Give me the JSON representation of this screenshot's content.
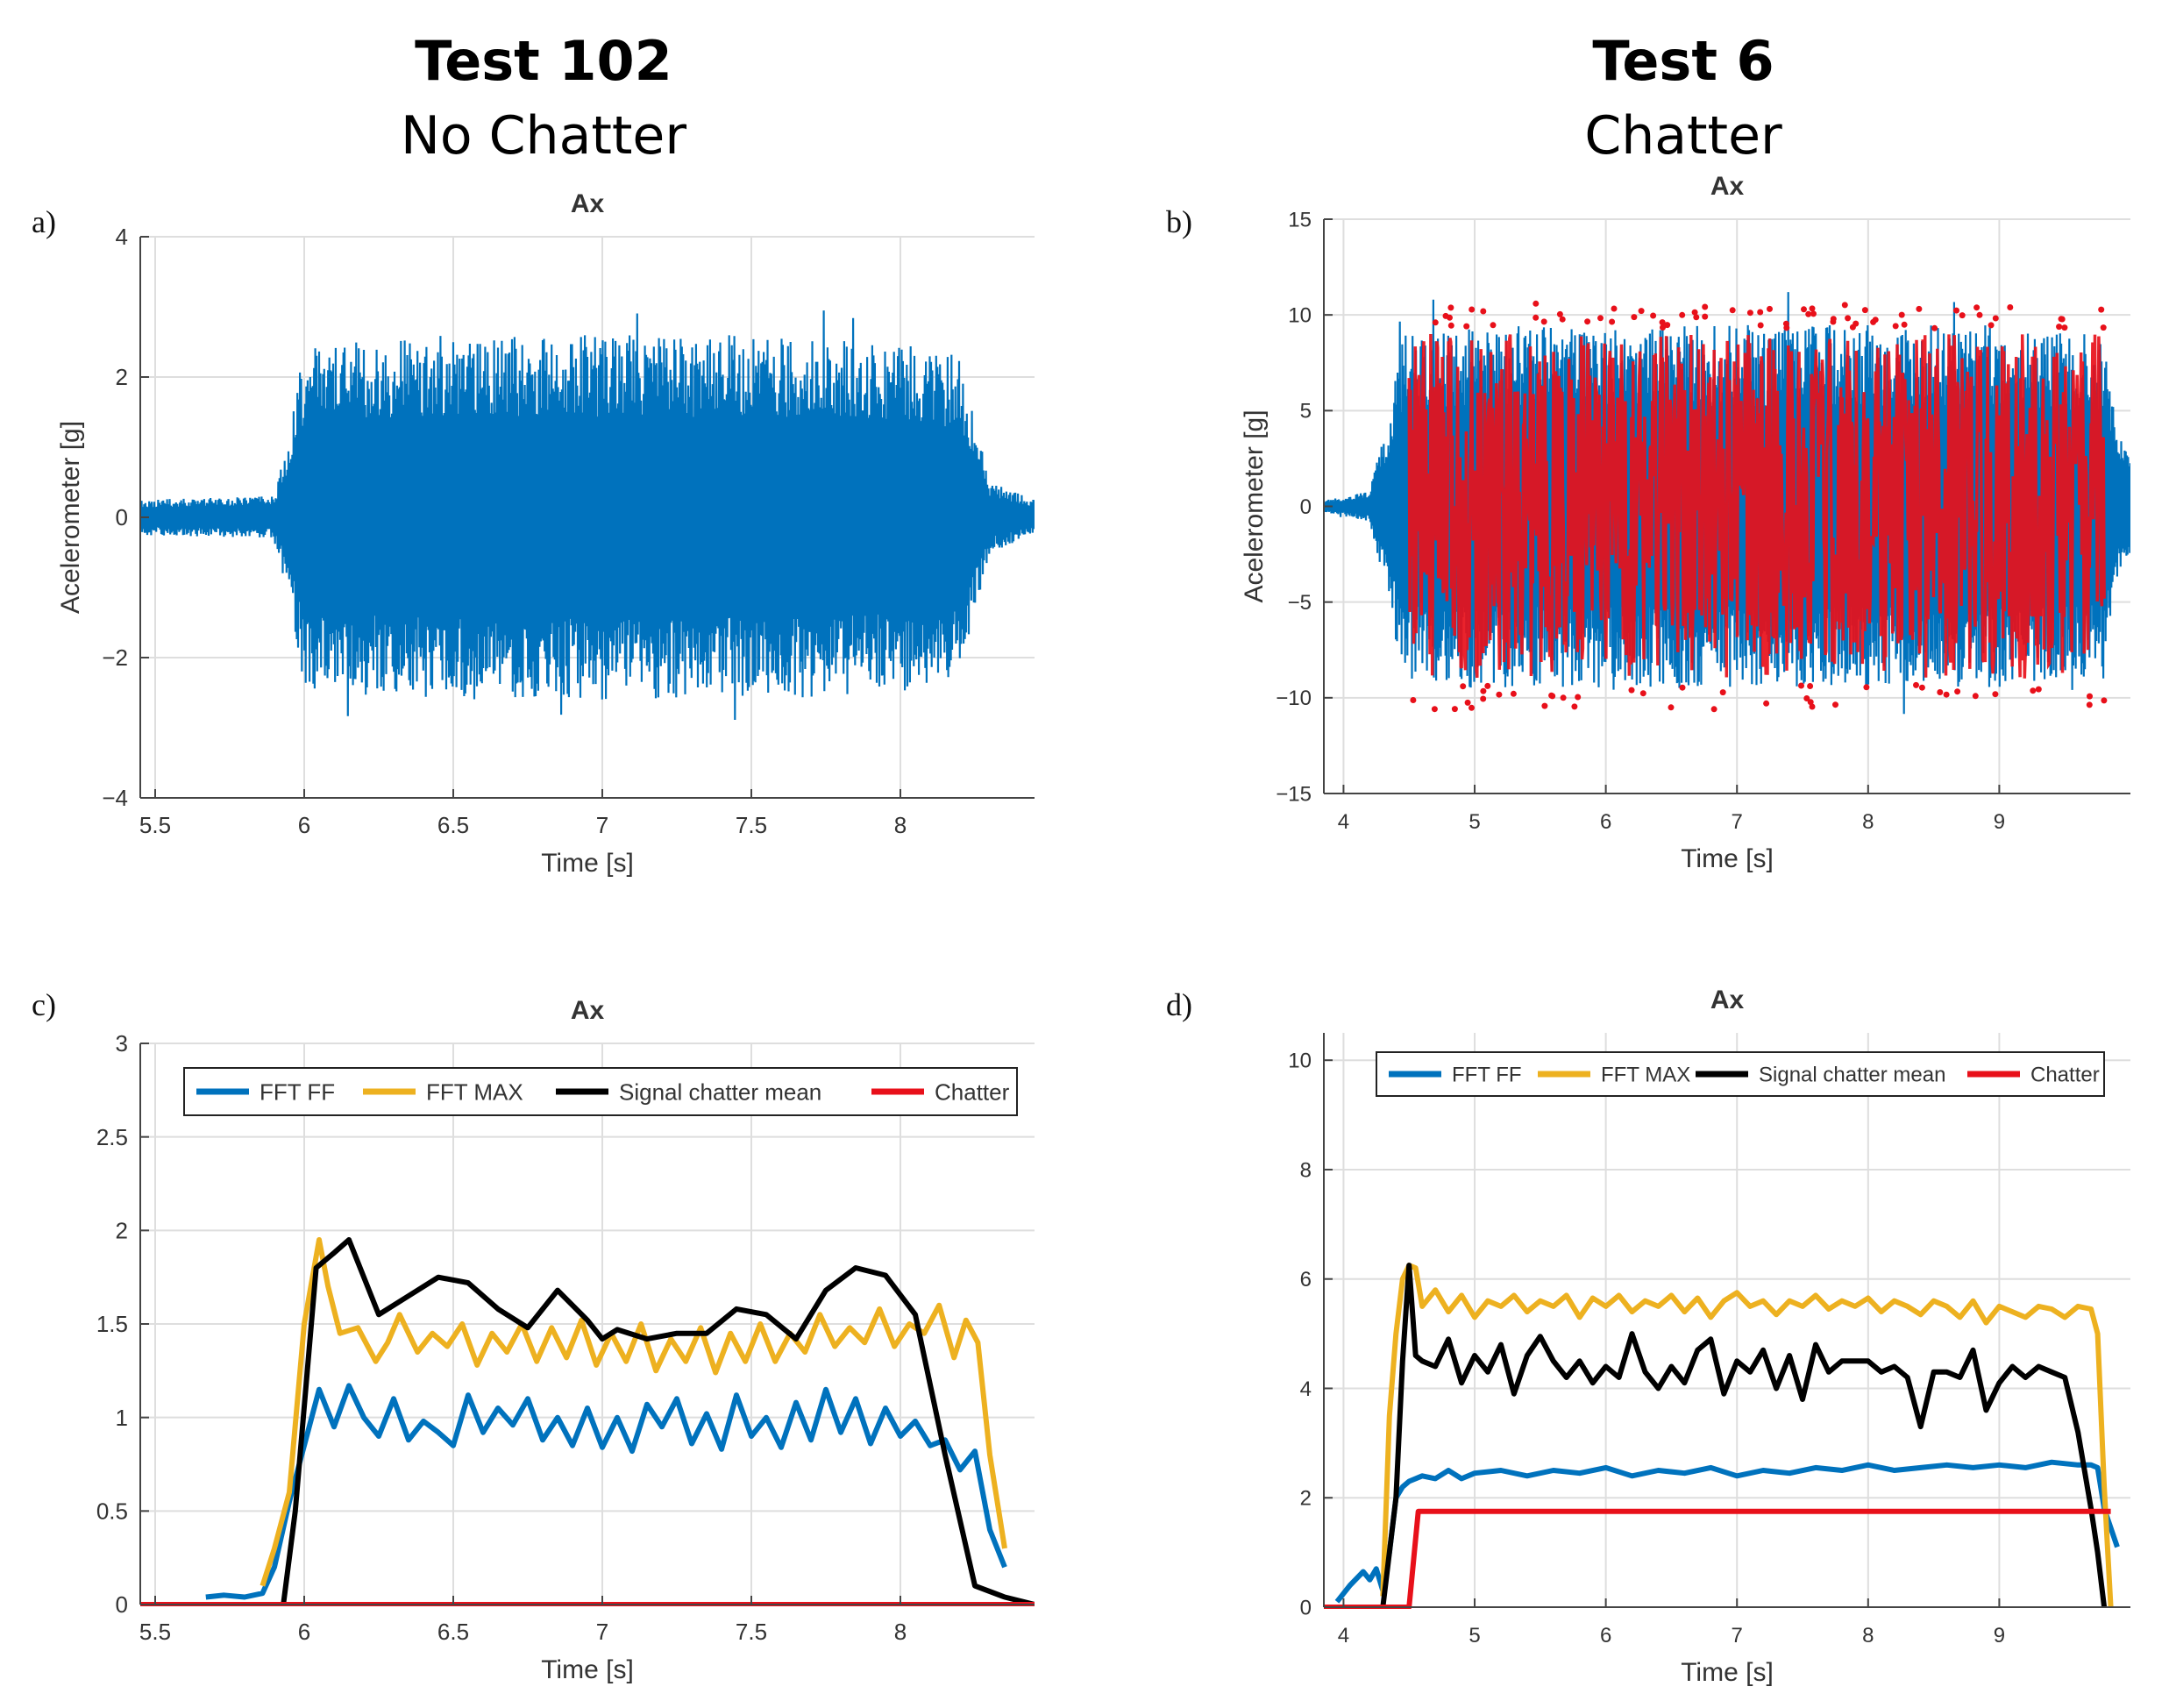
{
  "headings": {
    "left": {
      "test": "Test 102",
      "sub": "No Chatter"
    },
    "right": {
      "test": "Test 6",
      "sub": "Chatter"
    }
  },
  "colors": {
    "fft_ff": "#0072BD",
    "fft_max": "#EDB120",
    "signal_chatter_mean": "#000000",
    "chatter": "#E8101A",
    "grid": "#dedede",
    "axis": "#444444"
  },
  "chart_data": [
    {
      "panel": "a)",
      "type": "line",
      "title": "Ax",
      "xlabel": "Time [s]",
      "ylabel": "Acelerometer [g]",
      "xlim": [
        5.45,
        8.45
      ],
      "ylim": [
        -4,
        4
      ],
      "xticks": [
        5.5,
        6,
        6.5,
        7,
        7.5,
        8
      ],
      "xtick_labels": [
        "5.5",
        "6",
        "6.5",
        "7",
        "7.5",
        "8"
      ],
      "yticks": [
        -4,
        -2,
        0,
        2,
        4
      ],
      "ytick_labels": [
        "−4",
        "−2",
        "0",
        "2",
        "4"
      ],
      "grid": true,
      "series": [
        {
          "kind": "vibration",
          "color_key": "fft_ff",
          "envelope_t": [
            5.45,
            5.9,
            5.95,
            6.0,
            6.5,
            7.0,
            7.5,
            8.0,
            8.2,
            8.3,
            8.45
          ],
          "envelope_amp": [
            0.25,
            0.3,
            1.2,
            2.5,
            2.6,
            2.6,
            2.6,
            2.5,
            2.3,
            0.5,
            0.25
          ],
          "peaks": [
            3.2,
            -3.8
          ]
        }
      ]
    },
    {
      "panel": "b)",
      "type": "line",
      "title": "Ax",
      "xlabel": "Time [s]",
      "ylabel": "Acelerometer [g]",
      "xlim": [
        3.85,
        10.0
      ],
      "ylim": [
        -15,
        15
      ],
      "xticks": [
        4,
        5,
        6,
        7,
        8,
        9
      ],
      "xtick_labels": [
        "4",
        "5",
        "6",
        "7",
        "8",
        "9"
      ],
      "yticks": [
        -15,
        -10,
        -5,
        0,
        5,
        10,
        15
      ],
      "ytick_labels": [
        "−15",
        "−10",
        "−5",
        "0",
        "5",
        "10",
        "15"
      ],
      "grid": true,
      "series": [
        {
          "kind": "vibration",
          "color_key": "fft_ff",
          "envelope_t": [
            3.85,
            4.2,
            4.35,
            4.45,
            5.0,
            6.0,
            7.0,
            8.0,
            9.0,
            9.8,
            9.9,
            10.0
          ],
          "envelope_amp": [
            0.3,
            0.8,
            5.0,
            9.0,
            9.5,
            9.5,
            9.5,
            9.5,
            9.5,
            9.0,
            4.0,
            2.5
          ],
          "peaks": [
            10.5,
            -10.5
          ]
        },
        {
          "kind": "chatter_overlay",
          "color_key": "chatter",
          "t_range": [
            4.5,
            9.8
          ],
          "amp": 9.0
        }
      ]
    },
    {
      "panel": "c)",
      "type": "line",
      "title": "Ax",
      "xlabel": "Time [s]",
      "ylabel": "",
      "xlim": [
        5.45,
        8.45
      ],
      "ylim": [
        0,
        3
      ],
      "xticks": [
        5.5,
        6,
        6.5,
        7,
        7.5,
        8
      ],
      "xtick_labels": [
        "5.5",
        "6",
        "6.5",
        "7",
        "7.5",
        "8"
      ],
      "yticks": [
        0,
        0.5,
        1,
        1.5,
        2,
        2.5,
        3
      ],
      "ytick_labels": [
        "0",
        "0.5",
        "1",
        "1.5",
        "2",
        "2.5",
        "3"
      ],
      "grid": true,
      "legend": {
        "placement": "top",
        "entries": [
          "FFT FF",
          "FFT MAX",
          "Signal chatter mean",
          "Chatter"
        ]
      },
      "series": [
        {
          "name": "FFT FF",
          "color_key": "fft_ff",
          "x": [
            5.67,
            5.73,
            5.8,
            5.86,
            5.9,
            5.95,
            6.0,
            6.05,
            6.1,
            6.15,
            6.2,
            6.25,
            6.3,
            6.35,
            6.4,
            6.45,
            6.5,
            6.55,
            6.6,
            6.65,
            6.7,
            6.75,
            6.8,
            6.85,
            6.9,
            6.95,
            7.0,
            7.05,
            7.1,
            7.15,
            7.2,
            7.25,
            7.3,
            7.35,
            7.4,
            7.45,
            7.5,
            7.55,
            7.6,
            7.65,
            7.7,
            7.75,
            7.8,
            7.85,
            7.9,
            7.95,
            8.0,
            8.05,
            8.1,
            8.15,
            8.2,
            8.25,
            8.3,
            8.35
          ],
          "y": [
            0.04,
            0.05,
            0.04,
            0.06,
            0.2,
            0.55,
            0.85,
            1.15,
            0.95,
            1.17,
            1.0,
            0.9,
            1.1,
            0.88,
            0.98,
            0.92,
            0.85,
            1.12,
            0.92,
            1.05,
            0.96,
            1.1,
            0.88,
            1.0,
            0.85,
            1.05,
            0.84,
            1.0,
            0.82,
            1.07,
            0.95,
            1.1,
            0.86,
            1.02,
            0.83,
            1.12,
            0.9,
            1.0,
            0.84,
            1.08,
            0.88,
            1.15,
            0.92,
            1.1,
            0.86,
            1.05,
            0.9,
            0.98,
            0.85,
            0.88,
            0.72,
            0.82,
            0.4,
            0.2
          ]
        },
        {
          "name": "FFT MAX",
          "color_key": "fft_max",
          "x": [
            5.86,
            5.9,
            5.95,
            6.0,
            6.05,
            6.08,
            6.12,
            6.18,
            6.24,
            6.28,
            6.32,
            6.38,
            6.43,
            6.48,
            6.53,
            6.58,
            6.63,
            6.68,
            6.73,
            6.78,
            6.83,
            6.88,
            6.93,
            6.98,
            7.03,
            7.08,
            7.13,
            7.18,
            7.23,
            7.28,
            7.33,
            7.38,
            7.43,
            7.48,
            7.53,
            7.58,
            7.63,
            7.68,
            7.73,
            7.78,
            7.83,
            7.88,
            7.93,
            7.98,
            8.03,
            8.08,
            8.13,
            8.18,
            8.22,
            8.26,
            8.3,
            8.35
          ],
          "y": [
            0.1,
            0.3,
            0.6,
            1.5,
            1.95,
            1.7,
            1.45,
            1.48,
            1.3,
            1.4,
            1.55,
            1.35,
            1.45,
            1.38,
            1.5,
            1.28,
            1.45,
            1.35,
            1.5,
            1.3,
            1.48,
            1.32,
            1.52,
            1.28,
            1.45,
            1.3,
            1.5,
            1.25,
            1.42,
            1.3,
            1.48,
            1.24,
            1.45,
            1.3,
            1.5,
            1.3,
            1.45,
            1.35,
            1.55,
            1.38,
            1.48,
            1.4,
            1.58,
            1.38,
            1.5,
            1.45,
            1.6,
            1.32,
            1.52,
            1.4,
            0.8,
            0.3
          ]
        },
        {
          "name": "Signal chatter mean",
          "color_key": "signal_chatter_mean",
          "x": [
            5.93,
            5.97,
            6.04,
            6.1,
            6.15,
            6.25,
            6.35,
            6.45,
            6.55,
            6.65,
            6.75,
            6.85,
            6.95,
            7.0,
            7.05,
            7.15,
            7.25,
            7.35,
            7.45,
            7.55,
            7.65,
            7.75,
            7.85,
            7.95,
            8.05,
            8.15,
            8.25,
            8.35,
            8.45
          ],
          "y": [
            0.0,
            0.5,
            1.8,
            1.88,
            1.95,
            1.55,
            1.65,
            1.75,
            1.72,
            1.58,
            1.48,
            1.68,
            1.52,
            1.42,
            1.47,
            1.42,
            1.45,
            1.45,
            1.58,
            1.55,
            1.42,
            1.68,
            1.8,
            1.76,
            1.55,
            0.8,
            0.1,
            0.04,
            0.0
          ]
        },
        {
          "name": "Chatter",
          "color_key": "chatter",
          "x": [
            5.45,
            8.45
          ],
          "y": [
            0,
            0
          ]
        }
      ]
    },
    {
      "panel": "d)",
      "type": "line",
      "title": "Ax",
      "xlabel": "Time [s]",
      "ylabel": "",
      "xlim": [
        3.85,
        10.0
      ],
      "ylim": [
        0,
        10.5
      ],
      "xticks": [
        4,
        5,
        6,
        7,
        8,
        9
      ],
      "xtick_labels": [
        "4",
        "5",
        "6",
        "7",
        "8",
        "9"
      ],
      "yticks": [
        0,
        2,
        4,
        6,
        8,
        10
      ],
      "ytick_labels": [
        "0",
        "2",
        "4",
        "6",
        "8",
        "10"
      ],
      "grid": true,
      "legend": {
        "placement": "top",
        "entries": [
          "FFT FF",
          "FFT MAX",
          "Signal chatter mean",
          "Chatter"
        ]
      },
      "series": [
        {
          "name": "FFT FF",
          "color_key": "fft_ff",
          "x": [
            3.95,
            4.05,
            4.15,
            4.2,
            4.25,
            4.3,
            4.35,
            4.4,
            4.45,
            4.5,
            4.6,
            4.7,
            4.8,
            4.9,
            5.0,
            5.2,
            5.4,
            5.6,
            5.8,
            6.0,
            6.2,
            6.4,
            6.6,
            6.8,
            7.0,
            7.2,
            7.4,
            7.6,
            7.8,
            8.0,
            8.2,
            8.4,
            8.6,
            8.8,
            9.0,
            9.2,
            9.4,
            9.6,
            9.7,
            9.75,
            9.8,
            9.9
          ],
          "y": [
            0.1,
            0.4,
            0.65,
            0.5,
            0.7,
            0.3,
            1.0,
            2.0,
            2.2,
            2.3,
            2.4,
            2.35,
            2.5,
            2.35,
            2.45,
            2.5,
            2.4,
            2.5,
            2.45,
            2.55,
            2.4,
            2.5,
            2.45,
            2.55,
            2.4,
            2.5,
            2.45,
            2.55,
            2.5,
            2.6,
            2.5,
            2.55,
            2.6,
            2.55,
            2.6,
            2.55,
            2.65,
            2.6,
            2.6,
            2.55,
            1.8,
            1.1
          ]
        },
        {
          "name": "FFT MAX",
          "color_key": "fft_max",
          "x": [
            4.3,
            4.35,
            4.4,
            4.45,
            4.5,
            4.55,
            4.6,
            4.7,
            4.8,
            4.9,
            5.0,
            5.1,
            5.2,
            5.3,
            5.4,
            5.5,
            5.6,
            5.7,
            5.8,
            5.9,
            6.0,
            6.1,
            6.2,
            6.3,
            6.4,
            6.5,
            6.6,
            6.7,
            6.8,
            6.9,
            7.0,
            7.1,
            7.2,
            7.3,
            7.4,
            7.5,
            7.6,
            7.7,
            7.8,
            7.9,
            8.0,
            8.1,
            8.2,
            8.3,
            8.4,
            8.5,
            8.6,
            8.7,
            8.8,
            8.9,
            9.0,
            9.1,
            9.2,
            9.3,
            9.4,
            9.5,
            9.6,
            9.7,
            9.75,
            9.8,
            9.85
          ],
          "y": [
            0.2,
            3.5,
            5.0,
            6.0,
            6.25,
            6.2,
            5.5,
            5.8,
            5.4,
            5.7,
            5.3,
            5.6,
            5.5,
            5.7,
            5.4,
            5.6,
            5.5,
            5.7,
            5.3,
            5.65,
            5.5,
            5.7,
            5.4,
            5.6,
            5.5,
            5.7,
            5.4,
            5.65,
            5.3,
            5.6,
            5.75,
            5.5,
            5.6,
            5.35,
            5.6,
            5.5,
            5.7,
            5.45,
            5.6,
            5.5,
            5.65,
            5.4,
            5.6,
            5.5,
            5.35,
            5.6,
            5.5,
            5.3,
            5.6,
            5.2,
            5.5,
            5.4,
            5.3,
            5.5,
            5.45,
            5.3,
            5.5,
            5.45,
            5.0,
            2.2,
            0.0
          ]
        },
        {
          "name": "Signal chatter mean",
          "color_key": "signal_chatter_mean",
          "x": [
            4.3,
            4.4,
            4.45,
            4.5,
            4.55,
            4.6,
            4.7,
            4.8,
            4.9,
            5.0,
            5.1,
            5.2,
            5.3,
            5.4,
            5.5,
            5.6,
            5.7,
            5.8,
            5.9,
            6.0,
            6.1,
            6.2,
            6.3,
            6.4,
            6.5,
            6.6,
            6.7,
            6.8,
            6.9,
            7.0,
            7.1,
            7.2,
            7.3,
            7.4,
            7.5,
            7.6,
            7.7,
            7.8,
            7.9,
            8.0,
            8.1,
            8.2,
            8.3,
            8.4,
            8.5,
            8.6,
            8.7,
            8.8,
            8.9,
            9.0,
            9.1,
            9.2,
            9.3,
            9.4,
            9.5,
            9.6,
            9.7,
            9.75,
            9.8
          ],
          "y": [
            0.0,
            2.0,
            4.5,
            6.25,
            4.6,
            4.5,
            4.4,
            4.9,
            4.1,
            4.6,
            4.3,
            4.8,
            3.9,
            4.6,
            4.95,
            4.5,
            4.2,
            4.5,
            4.1,
            4.4,
            4.2,
            5.0,
            4.3,
            4.0,
            4.4,
            4.1,
            4.7,
            4.9,
            3.9,
            4.5,
            4.3,
            4.7,
            4.0,
            4.6,
            3.8,
            4.8,
            4.3,
            4.5,
            4.5,
            4.5,
            4.3,
            4.4,
            4.2,
            3.3,
            4.3,
            4.3,
            4.2,
            4.7,
            3.6,
            4.1,
            4.4,
            4.2,
            4.4,
            4.3,
            4.2,
            3.2,
            1.8,
            1.0,
            0.0
          ]
        },
        {
          "name": "Chatter",
          "color_key": "chatter",
          "x": [
            3.85,
            4.5,
            4.57,
            9.8,
            9.85
          ],
          "y": [
            0,
            0,
            1.75,
            1.75,
            1.75
          ]
        }
      ]
    }
  ]
}
